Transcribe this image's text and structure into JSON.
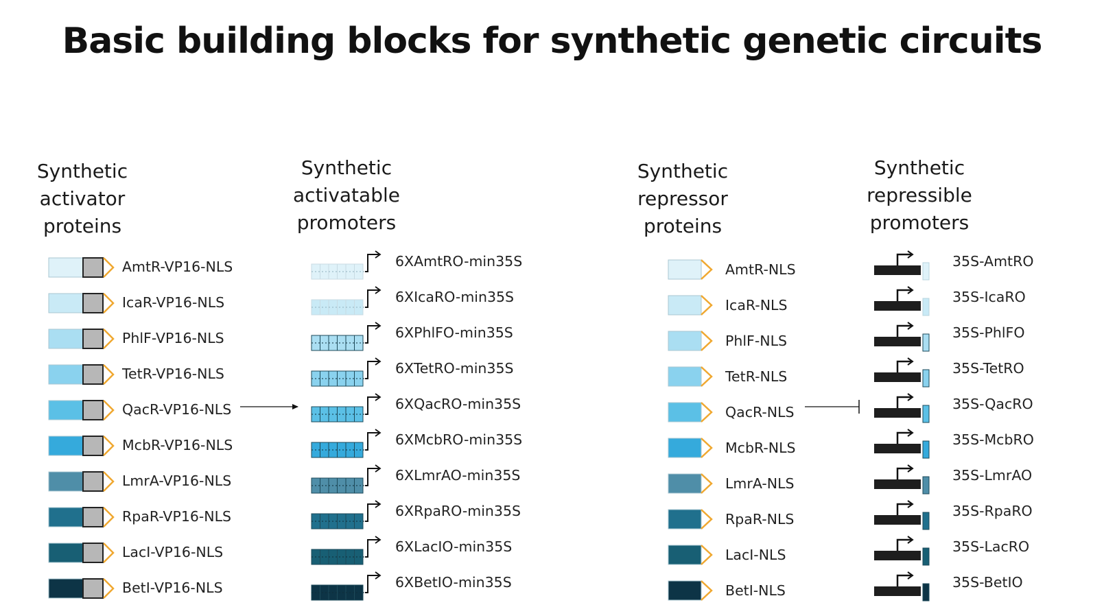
{
  "title": "Basic building blocks for synthetic genetic circuits",
  "colors": [
    "#dff2f9",
    "#c9eaf6",
    "#aadef2",
    "#8ad2ee",
    "#5bc0e6",
    "#35aadc",
    "#4f8ea8",
    "#20708d",
    "#185f74",
    "#0d3446"
  ],
  "orange": "#f0a830",
  "columns": {
    "activator_proteins": {
      "heading": [
        "Synthetic",
        "activator",
        "proteins"
      ],
      "items": [
        "AmtR-VP16-NLS",
        "IcaR-VP16-NLS",
        "PhlF-VP16-NLS",
        "TetR-VP16-NLS",
        "QacR-VP16-NLS",
        "McbR-VP16-NLS",
        "LmrA-VP16-NLS",
        "RpaR-VP16-NLS",
        "LacI-VP16-NLS",
        "BetI-VP16-NLS"
      ]
    },
    "activatable_promoters": {
      "heading": [
        "Synthetic",
        "activatable",
        "promoters"
      ],
      "items": [
        "6XAmtRO-min35S",
        "6XIcaRO-min35S",
        "6XPhlFO-min35S",
        "6XTetRO-min35S",
        "6XQacRO-min35S",
        "6XMcbRO-min35S",
        "6XLmrAO-min35S",
        "6XRpaRO-min35S",
        "6XLacIO-min35S",
        "6XBetIO-min35S"
      ]
    },
    "repressor_proteins": {
      "heading": [
        "Synthetic",
        "repressor",
        "proteins"
      ],
      "items": [
        "AmtR-NLS",
        "IcaR-NLS",
        "PhlF-NLS",
        "TetR-NLS",
        "QacR-NLS",
        "McbR-NLS",
        "LmrA-NLS",
        "RpaR-NLS",
        "LacI-NLS",
        "BetI-NLS"
      ]
    },
    "repressible_promoters": {
      "heading": [
        "Synthetic",
        "repressible",
        "promoters"
      ],
      "items": [
        "35S-AmtRO",
        "35S-IcaRO",
        "35S-PhlFO",
        "35S-TetRO",
        "35S-QacRO",
        "35S-McbRO",
        "35S-LmrAO",
        "35S-RpaRO",
        "35S-LacRO",
        "35S-BetIO"
      ]
    }
  }
}
